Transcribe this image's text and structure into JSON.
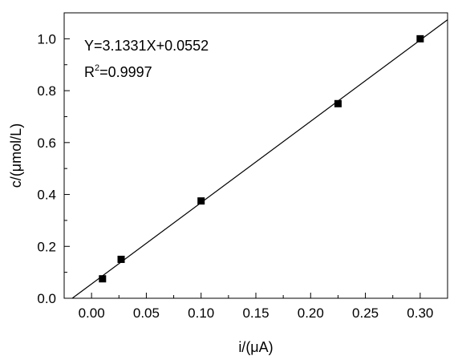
{
  "chart_data": {
    "type": "scatter",
    "title": "",
    "xlabel": "i/(μA)",
    "ylabel": "c/(μmol/L)",
    "xlim": [
      -0.025,
      0.325
    ],
    "ylim": [
      0.0,
      1.1
    ],
    "x_ticks": [
      0.0,
      0.05,
      0.1,
      0.15,
      0.2,
      0.25,
      0.3
    ],
    "x_tick_labels": [
      "0.00",
      "0.05",
      "0.10",
      "0.15",
      "0.20",
      "0.25",
      "0.30"
    ],
    "y_ticks": [
      0.0,
      0.2,
      0.4,
      0.6,
      0.8,
      1.0
    ],
    "y_tick_labels": [
      "0.0",
      "0.2",
      "0.4",
      "0.6",
      "0.8",
      "1.0"
    ],
    "grid": false,
    "series": [
      {
        "marker": "square",
        "x": [
          0.01,
          0.027,
          0.1,
          0.225,
          0.3
        ],
        "y": [
          0.075,
          0.15,
          0.375,
          0.75,
          1.0
        ]
      }
    ],
    "fit_line": {
      "slope": 3.1331,
      "intercept": 0.0552
    },
    "annotations": {
      "equation": "Y=3.1331X+0.0552",
      "r2_prefix": "R",
      "r2_sup": "2",
      "r2_value": "=0.9997"
    }
  }
}
